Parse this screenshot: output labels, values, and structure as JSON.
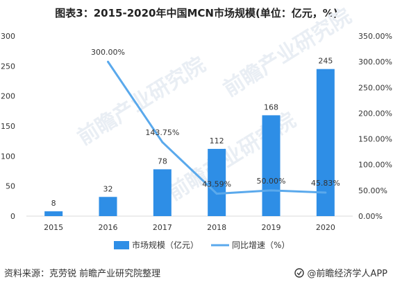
{
  "title": "图表3：2015-2020年中国MCN市场规模(单位：亿元，%)",
  "footer": {
    "source": "资料来源：克劳锐 前瞻产业研究院整理",
    "brand": "@前瞻经济学人APP"
  },
  "watermark": "前瞻产业研究院",
  "colors": {
    "bar": "#2e8ee6",
    "line": "#5aa9ec",
    "grid": "#e3e3e3",
    "watermark": "#e9eef4"
  },
  "chart_data": {
    "type": "bar",
    "categories": [
      "2015",
      "2016",
      "2017",
      "2018",
      "2019",
      "2020"
    ],
    "series": [
      {
        "name": "市场规模（亿元）",
        "type": "bar",
        "axis": "left",
        "values": [
          8,
          32,
          78,
          112,
          168,
          245
        ],
        "labels": [
          "8",
          "32",
          "78",
          "112",
          "168",
          "245"
        ]
      },
      {
        "name": "同比增速（%）",
        "type": "line",
        "axis": "right",
        "values": [
          null,
          300.0,
          143.75,
          43.59,
          50.0,
          45.83
        ],
        "labels": [
          "",
          "300.00%",
          "143.75%",
          "43.59%",
          "50.00%",
          "45.83%"
        ]
      }
    ],
    "y_left": {
      "min": 0,
      "max": 300,
      "ticks": [
        0,
        50,
        100,
        150,
        200,
        250,
        300
      ],
      "tick_labels": [
        "0",
        "50",
        "100",
        "150",
        "200",
        "250",
        "300"
      ]
    },
    "y_right": {
      "min": 0,
      "max": 350,
      "ticks": [
        0,
        50,
        100,
        150,
        200,
        250,
        300,
        350
      ],
      "tick_labels": [
        "0.00%",
        "50.00%",
        "100.00%",
        "150.00%",
        "200.00%",
        "250.00%",
        "300.00%",
        "350.00%"
      ]
    },
    "grid": false,
    "legend_position": "bottom"
  }
}
